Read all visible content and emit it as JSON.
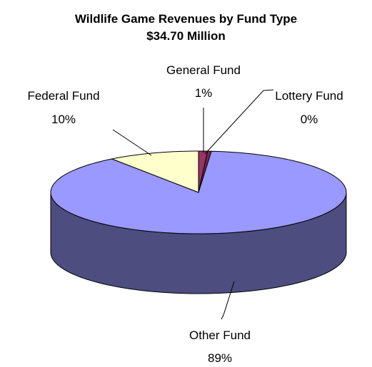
{
  "chart_data": {
    "type": "pie",
    "title": "Wildlife Game Revenues by Fund Type",
    "subtitle": "$34.70 Million",
    "three_d": true,
    "slices": [
      {
        "label": "General Fund",
        "value": 1,
        "percent_label": "1%",
        "color": "#993366"
      },
      {
        "label": "Lottery Fund",
        "value": 0,
        "percent_label": "0%",
        "color": "#7a2a4f"
      },
      {
        "label": "Other Fund",
        "value": 89,
        "percent_label": "89%",
        "color": "#9999ff"
      },
      {
        "label": "Federal Fund",
        "value": 10,
        "percent_label": "10%",
        "color": "#ffffcc"
      }
    ],
    "legend": "none",
    "border_color": "#000000"
  }
}
